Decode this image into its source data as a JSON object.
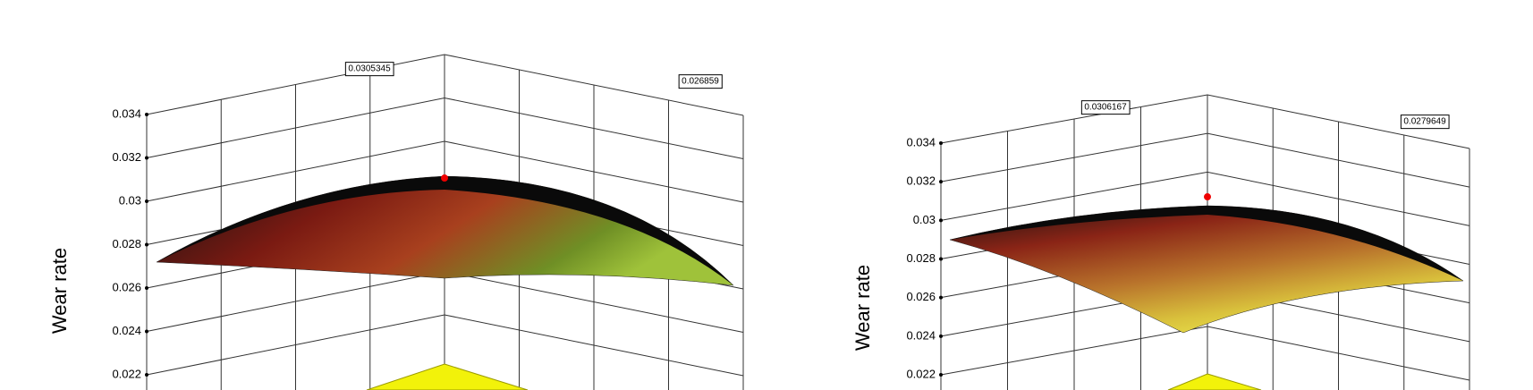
{
  "chart_data": [
    {
      "type": "surface",
      "ylabel": "Wear rate",
      "ylim": [
        0.022,
        0.034
      ],
      "yticks": [
        0.022,
        0.024,
        0.026,
        0.028,
        0.03,
        0.032,
        0.034
      ],
      "annotations": [
        0.0305345,
        0.026859
      ]
    },
    {
      "type": "surface",
      "ylabel": "Wear rate",
      "ylim": [
        0.022,
        0.034
      ],
      "yticks": [
        0.022,
        0.024,
        0.026,
        0.028,
        0.03,
        0.032,
        0.034
      ],
      "annotations": [
        0.0306167,
        0.0279649
      ]
    }
  ]
}
